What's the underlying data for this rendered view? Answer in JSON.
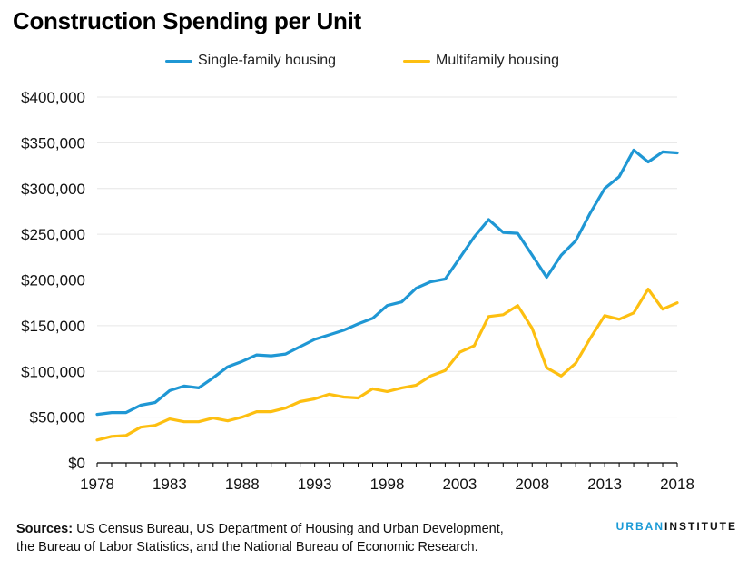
{
  "colors": {
    "single_family": "#1f97d4",
    "multifamily": "#fdbf11",
    "grid": "#e6e6e6",
    "axis": "#000000"
  },
  "chart_data": {
    "type": "line",
    "title": "Construction Spending per Unit",
    "xlabel": "",
    "ylabel": "",
    "xlim": [
      1978,
      2018
    ],
    "ylim": [
      0,
      400000
    ],
    "x_ticks": [
      1978,
      1983,
      1988,
      1993,
      1998,
      2003,
      2008,
      2013,
      2018
    ],
    "y_ticks": [
      0,
      50000,
      100000,
      150000,
      200000,
      250000,
      300000,
      350000,
      400000
    ],
    "y_tick_labels": [
      "$0",
      "$50,000",
      "$100,000",
      "$150,000",
      "$200,000",
      "$250,000",
      "$300,000",
      "$350,000",
      "$400,000"
    ],
    "legend_position": "top",
    "grid": "horizontal",
    "x": [
      1978,
      1979,
      1980,
      1981,
      1982,
      1983,
      1984,
      1985,
      1986,
      1987,
      1988,
      1989,
      1990,
      1991,
      1992,
      1993,
      1994,
      1995,
      1996,
      1997,
      1998,
      1999,
      2000,
      2001,
      2002,
      2003,
      2004,
      2005,
      2006,
      2007,
      2008,
      2009,
      2010,
      2011,
      2012,
      2013,
      2014,
      2015,
      2016,
      2017,
      2018
    ],
    "series": [
      {
        "name": "Single-family housing",
        "values": [
          53000,
          55000,
          55000,
          63000,
          66000,
          79000,
          84000,
          82000,
          93000,
          105000,
          111000,
          118000,
          117000,
          119000,
          127000,
          135000,
          140000,
          145000,
          152000,
          158000,
          172000,
          176000,
          191000,
          198000,
          201000,
          224000,
          247000,
          266000,
          252000,
          251000,
          227000,
          203000,
          227000,
          243000,
          273000,
          300000,
          313000,
          342000,
          329000,
          340000,
          339000
        ]
      },
      {
        "name": "Multifamily housing",
        "values": [
          25000,
          29000,
          30000,
          39000,
          41000,
          48000,
          45000,
          45000,
          49000,
          46000,
          50000,
          56000,
          56000,
          60000,
          67000,
          70000,
          75000,
          72000,
          71000,
          81000,
          78000,
          82000,
          85000,
          95000,
          101000,
          121000,
          128000,
          160000,
          162000,
          172000,
          147000,
          104000,
          95000,
          109000,
          136000,
          161000,
          157000,
          164000,
          190000,
          168000,
          175000
        ]
      }
    ]
  },
  "footer": {
    "sources_label": "Sources:",
    "line1": " US Census Bureau, US Department of Housing and Urban Development,",
    "line2": "the Bureau of Labor Statistics, and the National Bureau of Economic Research."
  },
  "brand": {
    "part1": "URBAN",
    "part2": "INSTITUTE"
  }
}
